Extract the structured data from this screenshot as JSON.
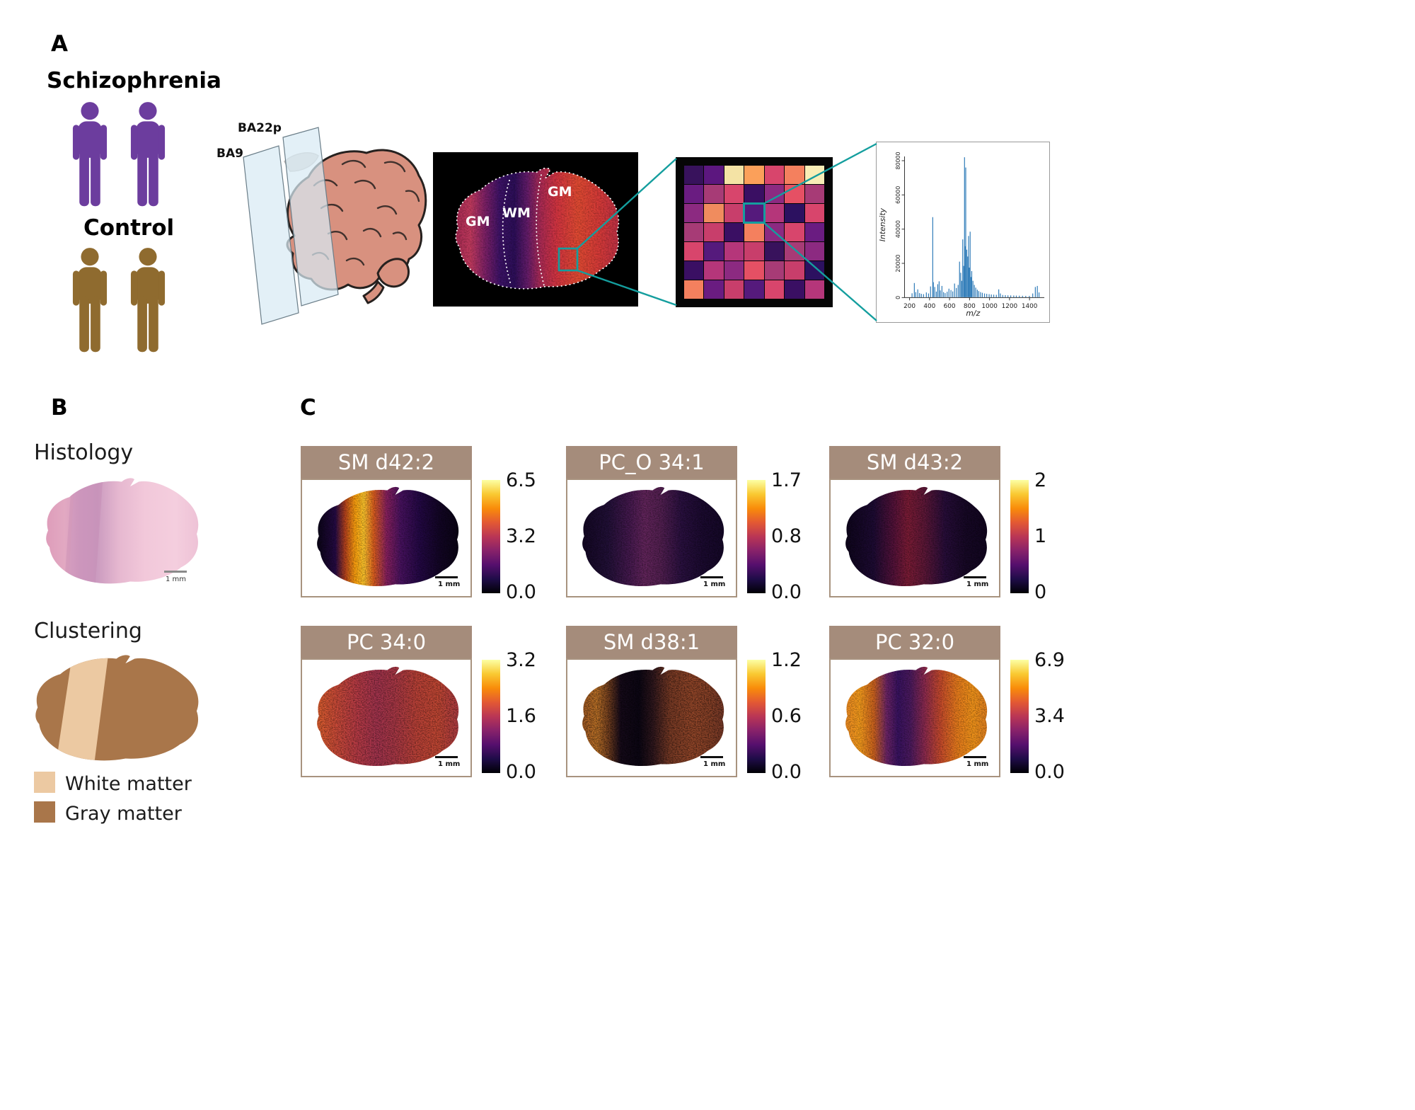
{
  "colors": {
    "schizophrenia": "#6c3d9e",
    "control": "#8f6b2f",
    "teal_accent": "#149e9e",
    "ion_header": "#a58c7b",
    "white_matter": "#ecc9a2",
    "gray_matter": "#a9764a",
    "spectrum_peak": "#2e7bb8",
    "colormap_inferno": [
      "#000004",
      "#1f0c48",
      "#550f6d",
      "#88226a",
      "#ba3655",
      "#e35933",
      "#f98c0a",
      "#f9c932",
      "#fcffa4"
    ]
  },
  "panel_a": {
    "label": "A",
    "groups": [
      {
        "name": "Schizophrenia",
        "count": 2
      },
      {
        "name": "Control",
        "count": 2
      }
    ],
    "brain": {
      "plane_labels": [
        "BA22p",
        "BA9"
      ]
    },
    "tissue_section": {
      "region_labels": [
        "GM",
        "WM",
        "GM"
      ]
    },
    "spectrum": {
      "ylabel": "Intensity",
      "xlabel": "m/z",
      "yticks": [
        0,
        20000,
        40000,
        60000,
        80000
      ],
      "xticks": [
        200,
        400,
        600,
        800,
        1000,
        1200,
        1400
      ]
    }
  },
  "panel_b": {
    "label": "B",
    "histology_title": "Histology",
    "clustering_title": "Clustering",
    "scalebar": "1 mm",
    "legend": [
      {
        "label": "White matter"
      },
      {
        "label": "Gray matter"
      }
    ]
  },
  "panel_c": {
    "label": "C",
    "scalebar": "1 mm",
    "ion_images": [
      {
        "title": "SM d42:2",
        "cbar": [
          "6.5",
          "3.2",
          "0.0"
        ],
        "style": "smd422"
      },
      {
        "title": "PC_O 34:1",
        "cbar": [
          "1.7",
          "0.8",
          "0.0"
        ],
        "style": "pco341"
      },
      {
        "title": "SM d43:2",
        "cbar": [
          "2",
          "1",
          "0"
        ],
        "style": "smd432"
      },
      {
        "title": "PC 34:0",
        "cbar": [
          "3.2",
          "1.6",
          "0.0"
        ],
        "style": "pc340"
      },
      {
        "title": "SM d38:1",
        "cbar": [
          "1.2",
          "0.6",
          "0.0"
        ],
        "style": "smd381"
      },
      {
        "title": "PC 32:0",
        "cbar": [
          "6.9",
          "3.4",
          "0.0"
        ],
        "style": "pc320"
      }
    ]
  },
  "chart_data": [
    {
      "type": "stem",
      "xlabel": "m/z",
      "ylabel": "Intensity",
      "xlim": [
        150,
        1520
      ],
      "ylim": [
        0,
        85000
      ],
      "peaks": [
        [
          225,
          2500
        ],
        [
          248,
          8500
        ],
        [
          262,
          3200
        ],
        [
          282,
          4800
        ],
        [
          300,
          2600
        ],
        [
          318,
          2200
        ],
        [
          340,
          2000
        ],
        [
          368,
          3000
        ],
        [
          390,
          2400
        ],
        [
          410,
          6500
        ],
        [
          432,
          47000
        ],
        [
          438,
          9000
        ],
        [
          452,
          6200
        ],
        [
          468,
          3500
        ],
        [
          482,
          7800
        ],
        [
          496,
          9500
        ],
        [
          508,
          4200
        ],
        [
          524,
          6800
        ],
        [
          540,
          3200
        ],
        [
          556,
          2600
        ],
        [
          576,
          3400
        ],
        [
          594,
          5200
        ],
        [
          614,
          4400
        ],
        [
          632,
          3600
        ],
        [
          650,
          8200
        ],
        [
          668,
          5600
        ],
        [
          686,
          7400
        ],
        [
          700,
          21000
        ],
        [
          712,
          14500
        ],
        [
          722,
          9800
        ],
        [
          732,
          34000
        ],
        [
          742,
          18500
        ],
        [
          750,
          82000
        ],
        [
          756,
          30000
        ],
        [
          762,
          76000
        ],
        [
          772,
          28000
        ],
        [
          782,
          24000
        ],
        [
          790,
          36000
        ],
        [
          798,
          17500
        ],
        [
          806,
          38500
        ],
        [
          814,
          12000
        ],
        [
          822,
          15500
        ],
        [
          834,
          9800
        ],
        [
          848,
          7400
        ],
        [
          862,
          5800
        ],
        [
          878,
          4600
        ],
        [
          892,
          3800
        ],
        [
          910,
          3200
        ],
        [
          928,
          2800
        ],
        [
          950,
          2400
        ],
        [
          972,
          2200
        ],
        [
          996,
          2000
        ],
        [
          1018,
          1800
        ],
        [
          1042,
          1700
        ],
        [
          1068,
          1600
        ],
        [
          1092,
          4800
        ],
        [
          1108,
          2400
        ],
        [
          1132,
          1500
        ],
        [
          1158,
          1400
        ],
        [
          1184,
          1300
        ],
        [
          1212,
          1250
        ],
        [
          1242,
          1200
        ],
        [
          1268,
          1150
        ],
        [
          1298,
          1100
        ],
        [
          1330,
          1050
        ],
        [
          1362,
          1000
        ],
        [
          1398,
          1000
        ],
        [
          1432,
          2400
        ],
        [
          1458,
          6200
        ],
        [
          1478,
          6800
        ],
        [
          1495,
          3000
        ]
      ]
    },
    {
      "type": "heatmap",
      "highlight_cell": [
        2,
        3
      ],
      "grid_colors": [
        [
          "#38125c",
          "#5c177f",
          "#f4e3a5",
          "#fba05a",
          "#d8456c",
          "#f4805e",
          "#f9edb6"
        ],
        [
          "#6a1c81",
          "#a73b76",
          "#d8456c",
          "#3a0f63",
          "#8c2a81",
          "#e55064",
          "#a73b76"
        ],
        [
          "#8c2a81",
          "#f08c5e",
          "#c83e6b",
          "#551a7c",
          "#b5367a",
          "#2c1160",
          "#d8456c"
        ],
        [
          "#a73b76",
          "#c83e6b",
          "#3a0f63",
          "#f4805e",
          "#8c2a81",
          "#d8456c",
          "#6a1c81"
        ],
        [
          "#d8456c",
          "#551a7c",
          "#b5367a",
          "#c83e6b",
          "#38125c",
          "#a73b76",
          "#8c2a81"
        ],
        [
          "#3a0f63",
          "#b5367a",
          "#8c2a81",
          "#e55064",
          "#a73b76",
          "#c83e6b",
          "#2c1160"
        ],
        [
          "#f4805e",
          "#6a1c81",
          "#c83e6b",
          "#551a7c",
          "#d8456c",
          "#3a0f63",
          "#b5367a"
        ]
      ]
    }
  ]
}
